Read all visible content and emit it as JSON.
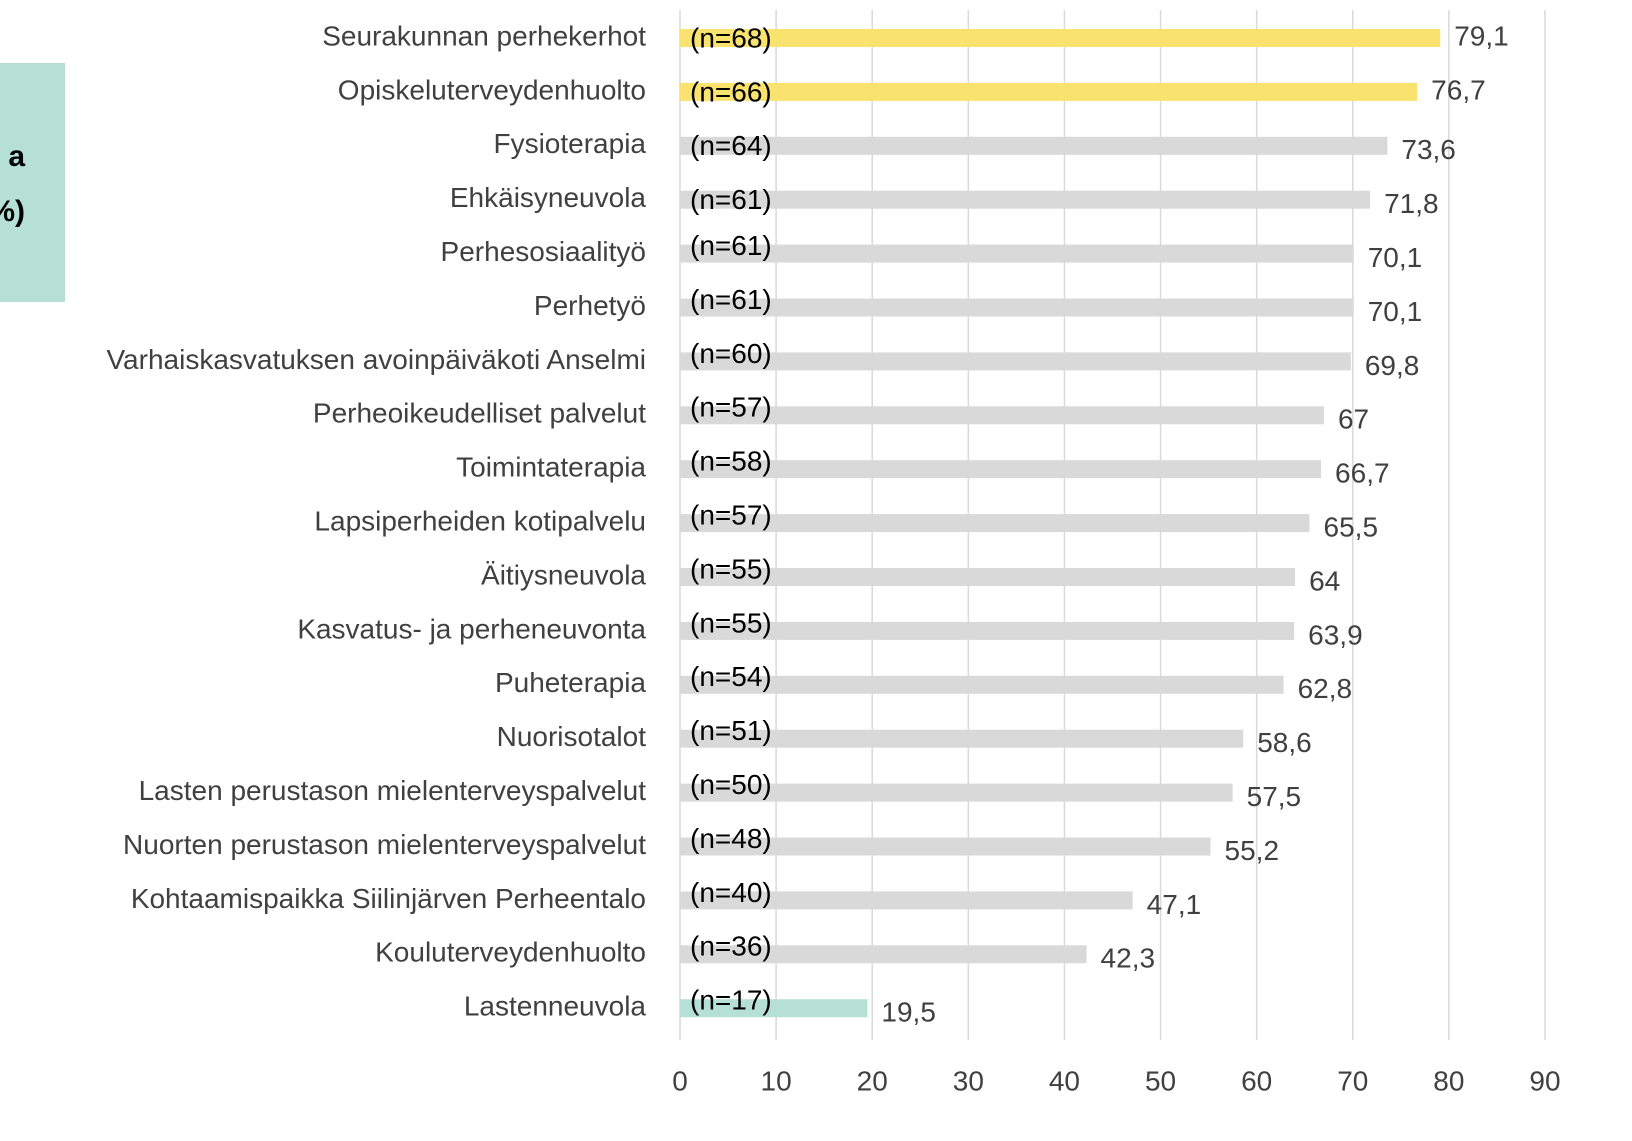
{
  "chart_data": {
    "type": "bar",
    "orientation": "horizontal",
    "box_text": [
      "a",
      "%)"
    ],
    "categories": [
      "Seurakunnan perhekerhot",
      "Opiskeluterveydenhuolto",
      "Fysioterapia",
      "Ehkäisyneuvola",
      "Perhesosiaalityö",
      "Perhetyö",
      "Varhaiskasvatuksen avoinpäiväkoti Anselmi",
      "Perheoikeudelliset palvelut",
      "Toimintaterapia",
      "Lapsiperheiden kotipalvelu",
      "Äitiysneuvola",
      "Kasvatus- ja perheneuvonta",
      "Puheterapia",
      "Nuorisotalot",
      "Lasten perustason mielenterveyspalvelut",
      "Nuorten perustason mielenterveyspalvelut",
      "Kohtaamispaikka Siilinjärven Perheentalo",
      "Kouluterveydenhuolto",
      "Lastenneuvola"
    ],
    "values": [
      79.1,
      76.7,
      73.6,
      71.8,
      70.1,
      70.1,
      69.8,
      67,
      66.7,
      65.5,
      64,
      63.9,
      62.8,
      58.6,
      57.5,
      55.2,
      47.1,
      42.3,
      19.5
    ],
    "value_labels": [
      "79,1",
      "76,7",
      "73,6",
      "71,8",
      "70,1",
      "70,1",
      "69,8",
      "67",
      "66,7",
      "65,5",
      "64",
      "63,9",
      "62,8",
      "58,6",
      "57,5",
      "55,2",
      "47,1",
      "42,3",
      "19,5"
    ],
    "annotations": [
      "(n=68)",
      "(n=66)",
      "(n=64)",
      "(n=61)",
      "(n=61)",
      "(n=61)",
      "(n=60)",
      "(n=57)",
      "(n=58)",
      "(n=57)",
      "(n=55)",
      "(n=55)",
      "(n=54)",
      "(n=51)",
      "(n=50)",
      "(n=48)",
      "(n=40)",
      "(n=36)",
      "(n=17)"
    ],
    "colors": [
      "#f9e26e",
      "#f9e26e",
      "#d9d9d9",
      "#d9d9d9",
      "#d9d9d9",
      "#d9d9d9",
      "#d9d9d9",
      "#d9d9d9",
      "#d9d9d9",
      "#d9d9d9",
      "#d9d9d9",
      "#d9d9d9",
      "#d9d9d9",
      "#d9d9d9",
      "#d9d9d9",
      "#d9d9d9",
      "#d9d9d9",
      "#d9d9d9",
      "#b6e0d4"
    ],
    "xlim": [
      0,
      90
    ],
    "xticks": [
      0,
      10,
      20,
      30,
      40,
      50,
      60,
      70,
      80,
      90
    ],
    "grid": true
  }
}
